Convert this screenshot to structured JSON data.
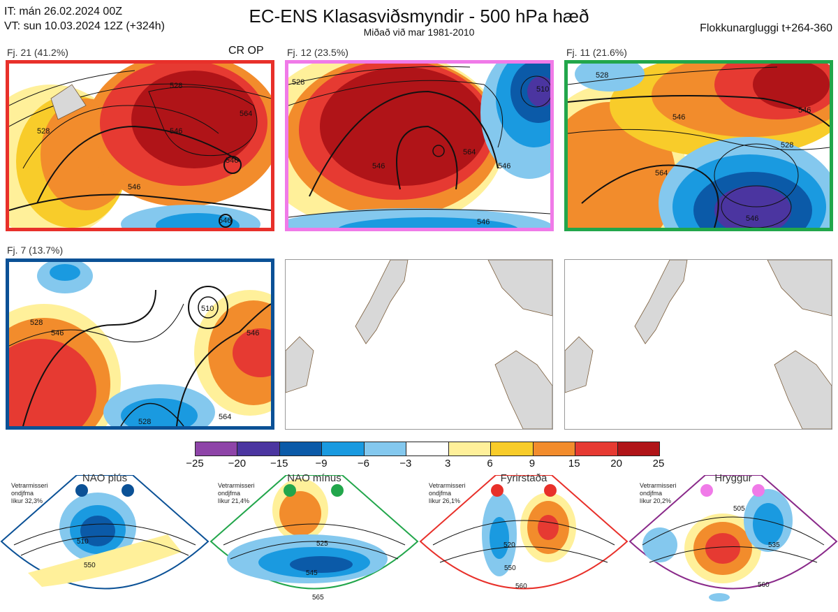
{
  "header": {
    "it_line": "IT: mán 26.02.2024 00Z",
    "vt_line": "VT: sun 10.03.2024 12Z  (+324h)",
    "title": "EC-ENS Klasasviðsmyndir - 500 hPa hæð",
    "subtitle": "Miðað við mar 1981-2010",
    "window": "Flokkunargluggi t+264-360"
  },
  "panels": [
    {
      "label": "Fj. 21 (41.2%)",
      "border": "#e8302a",
      "tag": "CR OP",
      "contours": [
        "528",
        "546",
        "564",
        "546",
        "528",
        "546",
        "546"
      ]
    },
    {
      "label": "Fj. 12 (23.5%)",
      "border": "#f07ae8",
      "tag": "",
      "contours": [
        "528",
        "546",
        "564",
        "546",
        "510",
        "546"
      ]
    },
    {
      "label": "Fj. 11 (21.6%)",
      "border": "#22a64b",
      "tag": "",
      "contours": [
        "528",
        "546",
        "564",
        "528",
        "546",
        "546"
      ]
    },
    {
      "label": "Fj. 7 (13.7%)",
      "border": "#0b5196",
      "tag": "",
      "contours": [
        "528",
        "546",
        "510",
        "546",
        "528",
        "564"
      ]
    }
  ],
  "colorbar": {
    "ticks": [
      "−25",
      "−20",
      "−15",
      "−9",
      "−6",
      "−3",
      "3",
      "6",
      "9",
      "15",
      "20",
      "25"
    ],
    "colors": [
      "#8e44a8",
      "#4b35a0",
      "#0b5aa8",
      "#1a9ae0",
      "#84c8ee",
      "#ffffff",
      "#fff09a",
      "#f8cc2a",
      "#f28c2c",
      "#e63a32",
      "#b01418"
    ]
  },
  "regimes": [
    {
      "name": "NAO plús",
      "note_l1": "Vetrarmisseri",
      "note_l2": "ondjfma",
      "note_l3": "líkur 32,3%",
      "color": "#0b5196",
      "dot": "#0b5196",
      "labels": [
        "510",
        "550"
      ]
    },
    {
      "name": "NAO mínus",
      "note_l1": "Vetrarmisseri",
      "note_l2": "ondjfma",
      "note_l3": "líkur 21,4%",
      "color": "#22a64b",
      "dot": "#22a64b",
      "labels": [
        "525",
        "545",
        "565"
      ]
    },
    {
      "name": "Fyrirstaða",
      "note_l1": "Vetrarmisseri",
      "note_l2": "ondjfma",
      "note_l3": "líkur 26,1%",
      "color": "#e8302a",
      "dot": "#e8302a",
      "labels": [
        "520",
        "550",
        "560"
      ]
    },
    {
      "name": "Hryggur",
      "note_l1": "Vetrarmisseri",
      "note_l2": "ondjfma",
      "note_l3": "líkur 20,2%",
      "color": "#8a2a8a",
      "dot": "#f07ae8",
      "labels": [
        "505",
        "535",
        "560"
      ]
    }
  ]
}
